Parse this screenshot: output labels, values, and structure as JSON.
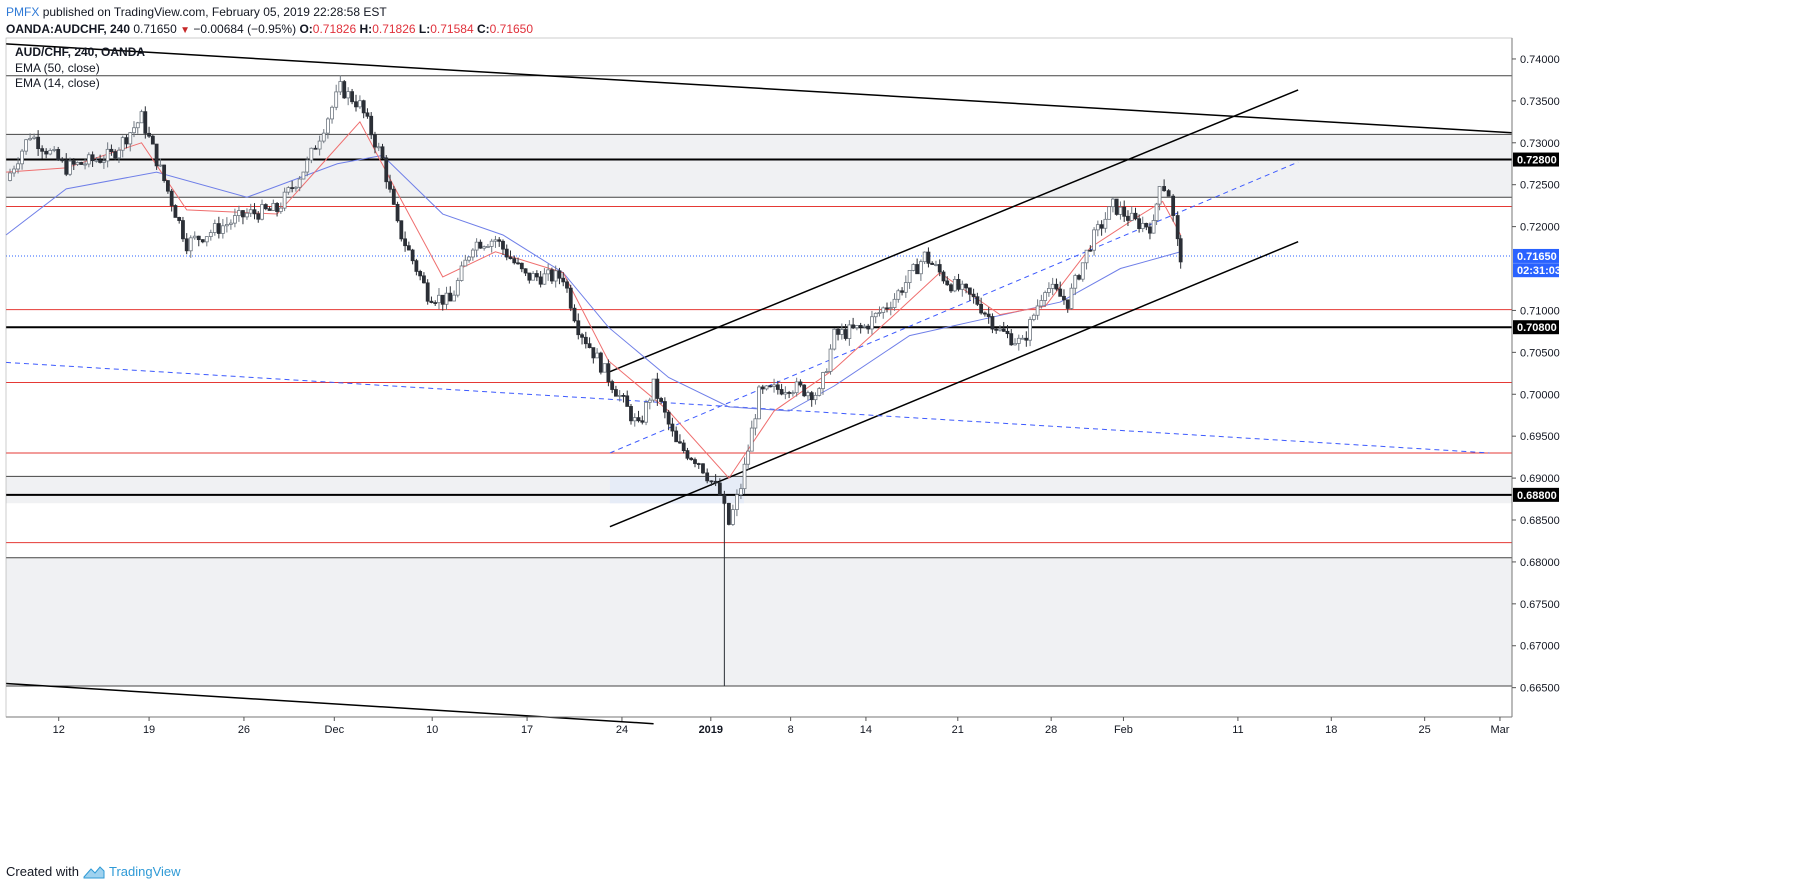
{
  "header": {
    "author": "PMFX",
    "published": "published on TradingView.com, February 05, 2019 22:28:58 EST"
  },
  "ohlc": {
    "symbol": "OANDA:AUDCHF, 240",
    "last": "0.71650",
    "change": "−0.00684 (−0.95%)",
    "open_label": "O:",
    "open": "0.71826",
    "high_label": "H:",
    "high": "0.71826",
    "low_label": "L:",
    "low": "0.71584",
    "close_label": "C:",
    "close": "0.71650"
  },
  "legend": {
    "title": "AUD/CHF, 240, OANDA",
    "ema50": "EMA (50, close)",
    "ema14": "EMA (14, close)"
  },
  "footer": {
    "created_with": "Created with",
    "brand": "TradingView"
  },
  "colors": {
    "up": "#6f7780",
    "down": "#2b2f36",
    "ema14": "#ef6f6f",
    "ema50": "#6f7fe8",
    "hline": "#e53935",
    "dashed": "#3d5afe"
  },
  "chart_data": {
    "type": "candlestick",
    "symbol": "AUD/CHF",
    "timeframe": "240",
    "ylim": [
      0.6615,
      0.7425
    ],
    "y_ticks": [
      "0.74000",
      "0.73500",
      "0.73000",
      "0.72500",
      "0.72000",
      "0.71000",
      "0.70500",
      "0.70000",
      "0.69500",
      "0.69000",
      "0.68500",
      "0.68000",
      "0.67500",
      "0.67000",
      "0.66500"
    ],
    "x_ticks": [
      {
        "label": "12",
        "t": 0.035
      },
      {
        "label": "19",
        "t": 0.095
      },
      {
        "label": "26",
        "t": 0.158
      },
      {
        "label": "Dec",
        "t": 0.218
      },
      {
        "label": "10",
        "t": 0.283
      },
      {
        "label": "17",
        "t": 0.346
      },
      {
        "label": "24",
        "t": 0.409
      },
      {
        "label": "2019",
        "t": 0.468,
        "bold": true
      },
      {
        "label": "8",
        "t": 0.521
      },
      {
        "label": "14",
        "t": 0.571
      },
      {
        "label": "21",
        "t": 0.632
      },
      {
        "label": "28",
        "t": 0.694
      },
      {
        "label": "Feb",
        "t": 0.742
      },
      {
        "label": "11",
        "t": 0.818
      },
      {
        "label": "18",
        "t": 0.88
      },
      {
        "label": "25",
        "t": 0.942
      },
      {
        "label": "Mar",
        "t": 0.992
      }
    ],
    "price_labels": [
      {
        "text": "0.72800",
        "value": 0.728,
        "bg": "#000000",
        "color": "#ffffff"
      },
      {
        "text": "0.71650",
        "value": 0.7165,
        "bg": "#2962ff",
        "color": "#ffffff"
      },
      {
        "text": "02:31:03",
        "value": 0.7148,
        "bg": "#2962ff",
        "color": "#ffffff"
      },
      {
        "text": "0.70800",
        "value": 0.708,
        "bg": "#000000",
        "color": "#ffffff"
      },
      {
        "text": "0.68800",
        "value": 0.688,
        "bg": "#000000",
        "color": "#ffffff"
      }
    ],
    "zones": [
      {
        "from": 0.7235,
        "to": 0.731
      },
      {
        "from": 0.687,
        "to": 0.6902
      },
      {
        "from": 0.6652,
        "to": 0.6805
      }
    ],
    "horizontal_levels": {
      "black_thick": [
        0.728,
        0.708,
        0.688
      ],
      "black_thin": [
        0.738,
        0.731,
        0.7235,
        0.6902,
        0.6805,
        0.6652
      ],
      "red": [
        0.7224,
        0.7101,
        0.7014,
        0.693,
        0.6823
      ],
      "current_price": 0.7165
    },
    "trendlines": [
      {
        "from": [
          0.0,
          0.7418
        ],
        "to": [
          1.0,
          0.7312
        ],
        "style": "solid"
      },
      {
        "from": [
          0.0,
          0.6655
        ],
        "to": [
          0.43,
          0.6607
        ],
        "style": "solid"
      },
      {
        "from": [
          0.401,
          0.7027
        ],
        "to": [
          0.858,
          0.7363
        ],
        "style": "solid"
      },
      {
        "from": [
          0.401,
          0.6842
        ],
        "to": [
          0.858,
          0.7182
        ],
        "style": "solid"
      },
      {
        "from": [
          0.401,
          0.693
        ],
        "to": [
          0.858,
          0.7277
        ],
        "style": "dashed"
      },
      {
        "from": [
          0.0,
          0.7038
        ],
        "to": [
          0.985,
          0.693
        ],
        "style": "dashed"
      }
    ],
    "key_points": [
      {
        "t": 0.0,
        "price": 0.7255
      },
      {
        "t": 0.016,
        "price": 0.731
      },
      {
        "t": 0.04,
        "price": 0.727
      },
      {
        "t": 0.07,
        "price": 0.7285
      },
      {
        "t": 0.09,
        "price": 0.733
      },
      {
        "t": 0.11,
        "price": 0.723
      },
      {
        "t": 0.12,
        "price": 0.718
      },
      {
        "t": 0.16,
        "price": 0.7215
      },
      {
        "t": 0.18,
        "price": 0.722
      },
      {
        "t": 0.2,
        "price": 0.7275
      },
      {
        "t": 0.222,
        "price": 0.7365
      },
      {
        "t": 0.235,
        "price": 0.7345
      },
      {
        "t": 0.25,
        "price": 0.728
      },
      {
        "t": 0.26,
        "price": 0.72
      },
      {
        "t": 0.28,
        "price": 0.712
      },
      {
        "t": 0.295,
        "price": 0.711
      },
      {
        "t": 0.31,
        "price": 0.718
      },
      {
        "t": 0.325,
        "price": 0.7185
      },
      {
        "t": 0.345,
        "price": 0.714
      },
      {
        "t": 0.37,
        "price": 0.714
      },
      {
        "t": 0.38,
        "price": 0.708
      },
      {
        "t": 0.4,
        "price": 0.702
      },
      {
        "t": 0.41,
        "price": 0.699
      },
      {
        "t": 0.42,
        "price": 0.696
      },
      {
        "t": 0.43,
        "price": 0.701
      },
      {
        "t": 0.445,
        "price": 0.694
      },
      {
        "t": 0.46,
        "price": 0.692
      },
      {
        "t": 0.474,
        "price": 0.688
      },
      {
        "t": 0.48,
        "price": 0.6845
      },
      {
        "t": 0.488,
        "price": 0.689
      },
      {
        "t": 0.5,
        "price": 0.7
      },
      {
        "t": 0.52,
        "price": 0.701
      },
      {
        "t": 0.54,
        "price": 0.7
      },
      {
        "t": 0.55,
        "price": 0.707
      },
      {
        "t": 0.57,
        "price": 0.708
      },
      {
        "t": 0.59,
        "price": 0.7115
      },
      {
        "t": 0.61,
        "price": 0.7165
      },
      {
        "t": 0.625,
        "price": 0.7135
      },
      {
        "t": 0.645,
        "price": 0.711
      },
      {
        "t": 0.66,
        "price": 0.7075
      },
      {
        "t": 0.675,
        "price": 0.706
      },
      {
        "t": 0.69,
        "price": 0.713
      },
      {
        "t": 0.705,
        "price": 0.711
      },
      {
        "t": 0.72,
        "price": 0.718
      },
      {
        "t": 0.735,
        "price": 0.7225
      },
      {
        "t": 0.75,
        "price": 0.7205
      },
      {
        "t": 0.762,
        "price": 0.72
      },
      {
        "t": 0.766,
        "price": 0.7255
      },
      {
        "t": 0.772,
        "price": 0.724
      },
      {
        "t": 0.778,
        "price": 0.718
      },
      {
        "t": 0.78,
        "price": 0.7165
      }
    ],
    "ema14_points": [
      {
        "t": 0.0,
        "price": 0.7265
      },
      {
        "t": 0.04,
        "price": 0.727
      },
      {
        "t": 0.09,
        "price": 0.73
      },
      {
        "t": 0.12,
        "price": 0.722
      },
      {
        "t": 0.18,
        "price": 0.7215
      },
      {
        "t": 0.21,
        "price": 0.7275
      },
      {
        "t": 0.235,
        "price": 0.7325
      },
      {
        "t": 0.26,
        "price": 0.724
      },
      {
        "t": 0.29,
        "price": 0.714
      },
      {
        "t": 0.325,
        "price": 0.717
      },
      {
        "t": 0.37,
        "price": 0.7145
      },
      {
        "t": 0.4,
        "price": 0.704
      },
      {
        "t": 0.44,
        "price": 0.698
      },
      {
        "t": 0.48,
        "price": 0.69
      },
      {
        "t": 0.51,
        "price": 0.698
      },
      {
        "t": 0.55,
        "price": 0.703
      },
      {
        "t": 0.59,
        "price": 0.7095
      },
      {
        "t": 0.62,
        "price": 0.7145
      },
      {
        "t": 0.66,
        "price": 0.7095
      },
      {
        "t": 0.69,
        "price": 0.7105
      },
      {
        "t": 0.72,
        "price": 0.7175
      },
      {
        "t": 0.75,
        "price": 0.721
      },
      {
        "t": 0.768,
        "price": 0.723
      },
      {
        "t": 0.78,
        "price": 0.719
      }
    ],
    "ema50_points": [
      {
        "t": 0.0,
        "price": 0.719
      },
      {
        "t": 0.04,
        "price": 0.7245
      },
      {
        "t": 0.1,
        "price": 0.7265
      },
      {
        "t": 0.16,
        "price": 0.7235
      },
      {
        "t": 0.22,
        "price": 0.7275
      },
      {
        "t": 0.25,
        "price": 0.7285
      },
      {
        "t": 0.29,
        "price": 0.7215
      },
      {
        "t": 0.33,
        "price": 0.719
      },
      {
        "t": 0.37,
        "price": 0.7145
      },
      {
        "t": 0.4,
        "price": 0.708
      },
      {
        "t": 0.44,
        "price": 0.702
      },
      {
        "t": 0.48,
        "price": 0.6985
      },
      {
        "t": 0.52,
        "price": 0.698
      },
      {
        "t": 0.55,
        "price": 0.701
      },
      {
        "t": 0.6,
        "price": 0.707
      },
      {
        "t": 0.65,
        "price": 0.709
      },
      {
        "t": 0.7,
        "price": 0.711
      },
      {
        "t": 0.74,
        "price": 0.715
      },
      {
        "t": 0.78,
        "price": 0.717
      }
    ],
    "x_range": [
      0.0,
      1.0
    ]
  }
}
